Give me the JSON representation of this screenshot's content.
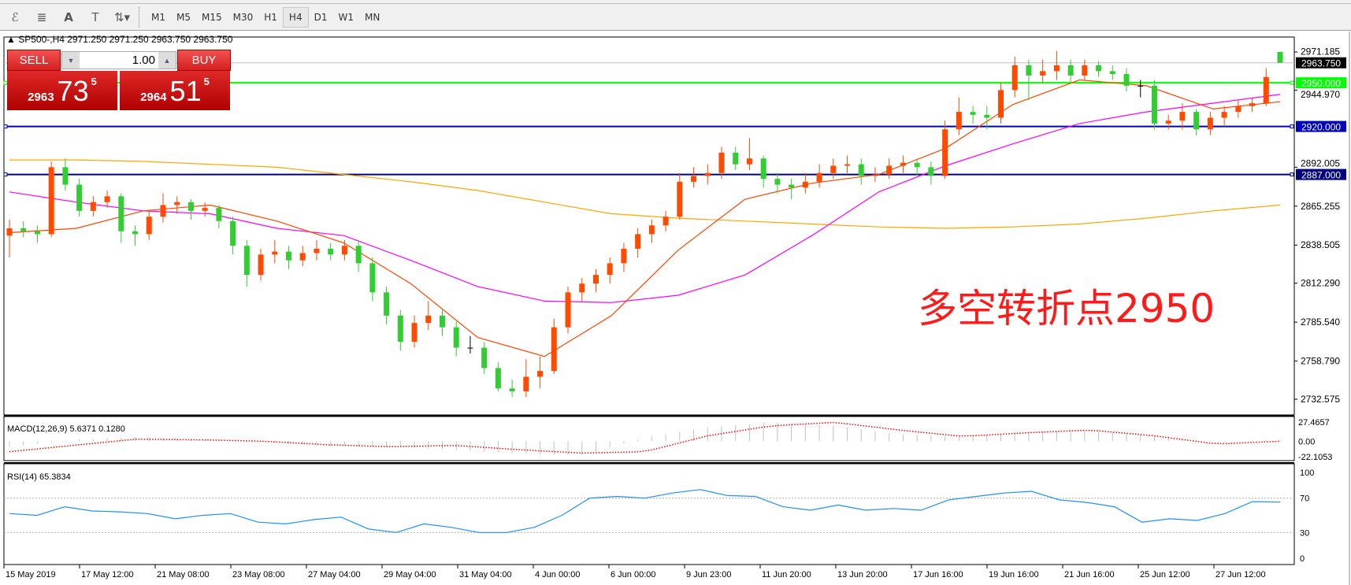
{
  "toolbar": {
    "icons": [
      "elliott-wave-icon",
      "fibonacci-icon",
      "text-icon",
      "text-label-icon",
      "arrows-icon"
    ],
    "text_icon": "A",
    "timeframes": [
      "M1",
      "M5",
      "M15",
      "M30",
      "H1",
      "H4",
      "D1",
      "W1",
      "MN"
    ],
    "active_timeframe": "H4"
  },
  "symbol_line": "▲ SP500-,H4  2971.250 2971.250 2963.750 2963.750",
  "trade": {
    "sell_label": "SELL",
    "buy_label": "BUY",
    "lot": "1.00",
    "sell_small": "2963",
    "sell_big": "73",
    "sell_sup": "5",
    "buy_small": "2964",
    "buy_big": "51",
    "buy_sup": "5"
  },
  "annotation": "多空转折点2950",
  "colors": {
    "up": "#ff4a00",
    "down": "#32cd32",
    "ma_fast": "#ff4500",
    "ma_mid": "#ff00ff",
    "ma_slow": "#ffa500",
    "line_2950": "#00ff00",
    "line_2920": "#0000c0",
    "line_2887": "#000080",
    "rsi": "#1e90ff",
    "macd_signal": "#ff0000",
    "macd_hist": "#c0c0c0"
  },
  "chart_data": {
    "type": "candlestick",
    "price_axis": {
      "ticks": [
        "2971.185",
        "2944.970",
        "2892.005",
        "2865.255",
        "2838.505",
        "2812.290",
        "2785.540",
        "2758.790",
        "2732.575"
      ],
      "range": [
        2732.575,
        2971.185
      ]
    },
    "current_price": "2963.750",
    "hlines": [
      {
        "price": 2950,
        "label": "2950.000"
      },
      {
        "price": 2920,
        "label": "2920.000"
      },
      {
        "price": 2887,
        "label": "2887.000"
      }
    ],
    "candles": [
      [
        2845,
        2856,
        2830,
        2850
      ],
      [
        2850,
        2855,
        2844,
        2848
      ],
      [
        2848,
        2852,
        2840,
        2846
      ],
      [
        2846,
        2896,
        2844,
        2892
      ],
      [
        2892,
        2898,
        2876,
        2880
      ],
      [
        2880,
        2884,
        2858,
        2862
      ],
      [
        2862,
        2872,
        2858,
        2868
      ],
      [
        2868,
        2876,
        2864,
        2872
      ],
      [
        2872,
        2874,
        2840,
        2848
      ],
      [
        2848,
        2852,
        2838,
        2846
      ],
      [
        2846,
        2862,
        2842,
        2858
      ],
      [
        2858,
        2874,
        2854,
        2866
      ],
      [
        2866,
        2872,
        2860,
        2868
      ],
      [
        2868,
        2870,
        2856,
        2862
      ],
      [
        2862,
        2868,
        2858,
        2864
      ],
      [
        2864,
        2866,
        2850,
        2855
      ],
      [
        2855,
        2858,
        2832,
        2838
      ],
      [
        2838,
        2842,
        2810,
        2818
      ],
      [
        2818,
        2836,
        2814,
        2832
      ],
      [
        2832,
        2842,
        2826,
        2834
      ],
      [
        2834,
        2838,
        2822,
        2828
      ],
      [
        2828,
        2838,
        2824,
        2833
      ],
      [
        2833,
        2842,
        2828,
        2836
      ],
      [
        2836,
        2840,
        2828,
        2832
      ],
      [
        2832,
        2842,
        2828,
        2838
      ],
      [
        2838,
        2842,
        2820,
        2826
      ],
      [
        2826,
        2830,
        2800,
        2806
      ],
      [
        2806,
        2810,
        2784,
        2790
      ],
      [
        2790,
        2794,
        2766,
        2772
      ],
      [
        2772,
        2790,
        2768,
        2785
      ],
      [
        2785,
        2800,
        2780,
        2790
      ],
      [
        2790,
        2794,
        2776,
        2782
      ],
      [
        2782,
        2786,
        2762,
        2768
      ],
      [
        2768,
        2776,
        2764,
        2768
      ],
      [
        2768,
        2772,
        2750,
        2754
      ],
      [
        2754,
        2758,
        2738,
        2740
      ],
      [
        2740,
        2746,
        2734,
        2738
      ],
      [
        2738,
        2760,
        2734,
        2748
      ],
      [
        2748,
        2762,
        2740,
        2752
      ],
      [
        2752,
        2788,
        2750,
        2782
      ],
      [
        2782,
        2810,
        2778,
        2806
      ],
      [
        2806,
        2816,
        2800,
        2812
      ],
      [
        2812,
        2822,
        2806,
        2818
      ],
      [
        2818,
        2830,
        2812,
        2826
      ],
      [
        2826,
        2840,
        2820,
        2836
      ],
      [
        2836,
        2850,
        2830,
        2846
      ],
      [
        2846,
        2856,
        2840,
        2852
      ],
      [
        2852,
        2862,
        2848,
        2858
      ],
      [
        2858,
        2888,
        2856,
        2882
      ],
      [
        2882,
        2892,
        2878,
        2886
      ],
      [
        2886,
        2894,
        2880,
        2888
      ],
      [
        2888,
        2906,
        2884,
        2902
      ],
      [
        2902,
        2906,
        2890,
        2894
      ],
      [
        2894,
        2912,
        2890,
        2898
      ],
      [
        2898,
        2900,
        2878,
        2884
      ],
      [
        2884,
        2888,
        2874,
        2880
      ],
      [
        2880,
        2884,
        2870,
        2878
      ],
      [
        2878,
        2888,
        2874,
        2882
      ],
      [
        2882,
        2894,
        2878,
        2888
      ],
      [
        2888,
        2898,
        2884,
        2893
      ],
      [
        2893,
        2900,
        2888,
        2894
      ],
      [
        2894,
        2898,
        2880,
        2886
      ],
      [
        2886,
        2892,
        2882,
        2887
      ],
      [
        2887,
        2898,
        2884,
        2893
      ],
      [
        2893,
        2900,
        2888,
        2895
      ],
      [
        2895,
        2898,
        2886,
        2892
      ],
      [
        2892,
        2896,
        2880,
        2886
      ],
      [
        2886,
        2924,
        2884,
        2918
      ],
      [
        2918,
        2940,
        2914,
        2930
      ],
      [
        2930,
        2934,
        2922,
        2928
      ],
      [
        2928,
        2934,
        2918,
        2926
      ],
      [
        2926,
        2950,
        2922,
        2945
      ],
      [
        2945,
        2968,
        2940,
        2962
      ],
      [
        2962,
        2966,
        2938,
        2955
      ],
      [
        2955,
        2966,
        2950,
        2958
      ],
      [
        2958,
        2972,
        2952,
        2962
      ],
      [
        2962,
        2966,
        2950,
        2955
      ],
      [
        2955,
        2966,
        2952,
        2962
      ],
      [
        2962,
        2965,
        2954,
        2958
      ],
      [
        2958,
        2962,
        2952,
        2956
      ],
      [
        2956,
        2960,
        2944,
        2948
      ],
      [
        2948,
        2952,
        2940,
        2948
      ],
      [
        2948,
        2952,
        2918,
        2922
      ],
      [
        2922,
        2928,
        2918,
        2924
      ],
      [
        2924,
        2936,
        2918,
        2930
      ],
      [
        2930,
        2932,
        2914,
        2918
      ],
      [
        2918,
        2930,
        2914,
        2926
      ],
      [
        2926,
        2934,
        2920,
        2930
      ],
      [
        2930,
        2938,
        2926,
        2934
      ],
      [
        2934,
        2940,
        2930,
        2936
      ],
      [
        2936,
        2960,
        2934,
        2954
      ],
      [
        2971.25,
        2971.25,
        2963.75,
        2963.75
      ]
    ],
    "ma_fast": [
      2847,
      2850,
      2862,
      2866,
      2855,
      2840,
      2812,
      2775,
      2762,
      2790,
      2835,
      2870,
      2881,
      2887,
      2905,
      2935,
      2952,
      2948,
      2932,
      2937
    ],
    "ma_mid": [
      2875,
      2868,
      2862,
      2860,
      2850,
      2845,
      2828,
      2810,
      2800,
      2799,
      2804,
      2818,
      2845,
      2875,
      2893,
      2908,
      2922,
      2930,
      2936,
      2942
    ],
    "ma_slow": [
      2897,
      2897,
      2896,
      2894,
      2892,
      2887,
      2882,
      2876,
      2868,
      2860,
      2857,
      2855,
      2853,
      2851,
      2850,
      2851,
      2853,
      2857,
      2862,
      2866
    ],
    "x_labels": [
      "15 May 2019",
      "17 May 12:00",
      "21 May 08:00",
      "23 May 08:00",
      "27 May 04:00",
      "29 May 04:00",
      "31 May 04:00",
      "4 Jun 00:00",
      "6 Jun 00:00",
      "9 Jun 23:00",
      "11 Jun 20:00",
      "13 Jun 20:00",
      "17 Jun 16:00",
      "19 Jun 16:00",
      "21 Jun 16:00",
      "25 Jun 12:00",
      "27 Jun 12:00"
    ],
    "macd": {
      "label": "MACD(12,26,9) 5.6371 0.1280",
      "ticks": [
        "27.4657",
        "0.00",
        "-22.1053"
      ],
      "range": [
        -22.1053,
        27.4657
      ],
      "hist": [
        -8,
        2,
        6,
        2,
        -2,
        -7,
        -8,
        -12,
        -18,
        -20,
        5,
        20,
        27,
        22,
        10,
        6,
        14,
        15,
        8,
        -2,
        3
      ],
      "signal": [
        -15,
        -6,
        3,
        2,
        0,
        -5,
        -8,
        -6,
        -12,
        -17,
        -15,
        8,
        22,
        27,
        16,
        7,
        12,
        16,
        8,
        -4,
        0
      ]
    },
    "rsi": {
      "label": "RSI(14) 65.3834",
      "ticks": [
        "100",
        "70",
        "30",
        "0"
      ],
      "levels": [
        70,
        30
      ],
      "values": [
        52,
        50,
        60,
        55,
        54,
        52,
        46,
        50,
        52,
        42,
        40,
        45,
        48,
        34,
        30,
        40,
        36,
        30,
        30,
        36,
        50,
        70,
        72,
        70,
        76,
        80,
        73,
        72,
        60,
        56,
        62,
        56,
        58,
        56,
        68,
        72,
        76,
        78,
        68,
        65,
        60,
        42,
        46,
        44,
        52,
        66,
        65.38
      ]
    }
  }
}
